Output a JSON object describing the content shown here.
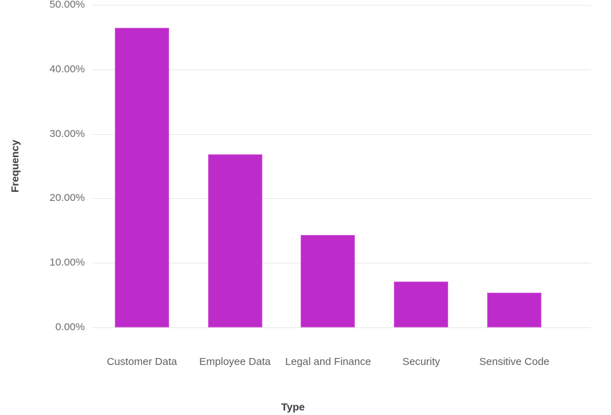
{
  "chart_data": {
    "type": "bar",
    "title": "",
    "xlabel": "Type",
    "ylabel": "Frequency",
    "categories": [
      "Customer Data",
      "Employee Data",
      "Legal and Finance",
      "Security",
      "Sensitive Code"
    ],
    "values": [
      46.43,
      26.79,
      14.29,
      7.14,
      5.36
    ],
    "value_unit": "%",
    "ylim": [
      0,
      50
    ],
    "yticks": [
      0,
      10,
      20,
      30,
      40,
      50
    ],
    "ytick_labels": [
      "0.00%",
      "10.00%",
      "20.00%",
      "30.00%",
      "40.00%",
      "50.00%"
    ],
    "grid": true,
    "legend": false,
    "colors": {
      "bar_fill": "#be2bcb",
      "bar_border": "#d45fd9",
      "gridline": "#e8e8e8",
      "tick_label": "#6b6b6b",
      "category_label": "#5f5f5f",
      "axis_title": "#3d3d3d",
      "background": "#ffffff"
    }
  }
}
